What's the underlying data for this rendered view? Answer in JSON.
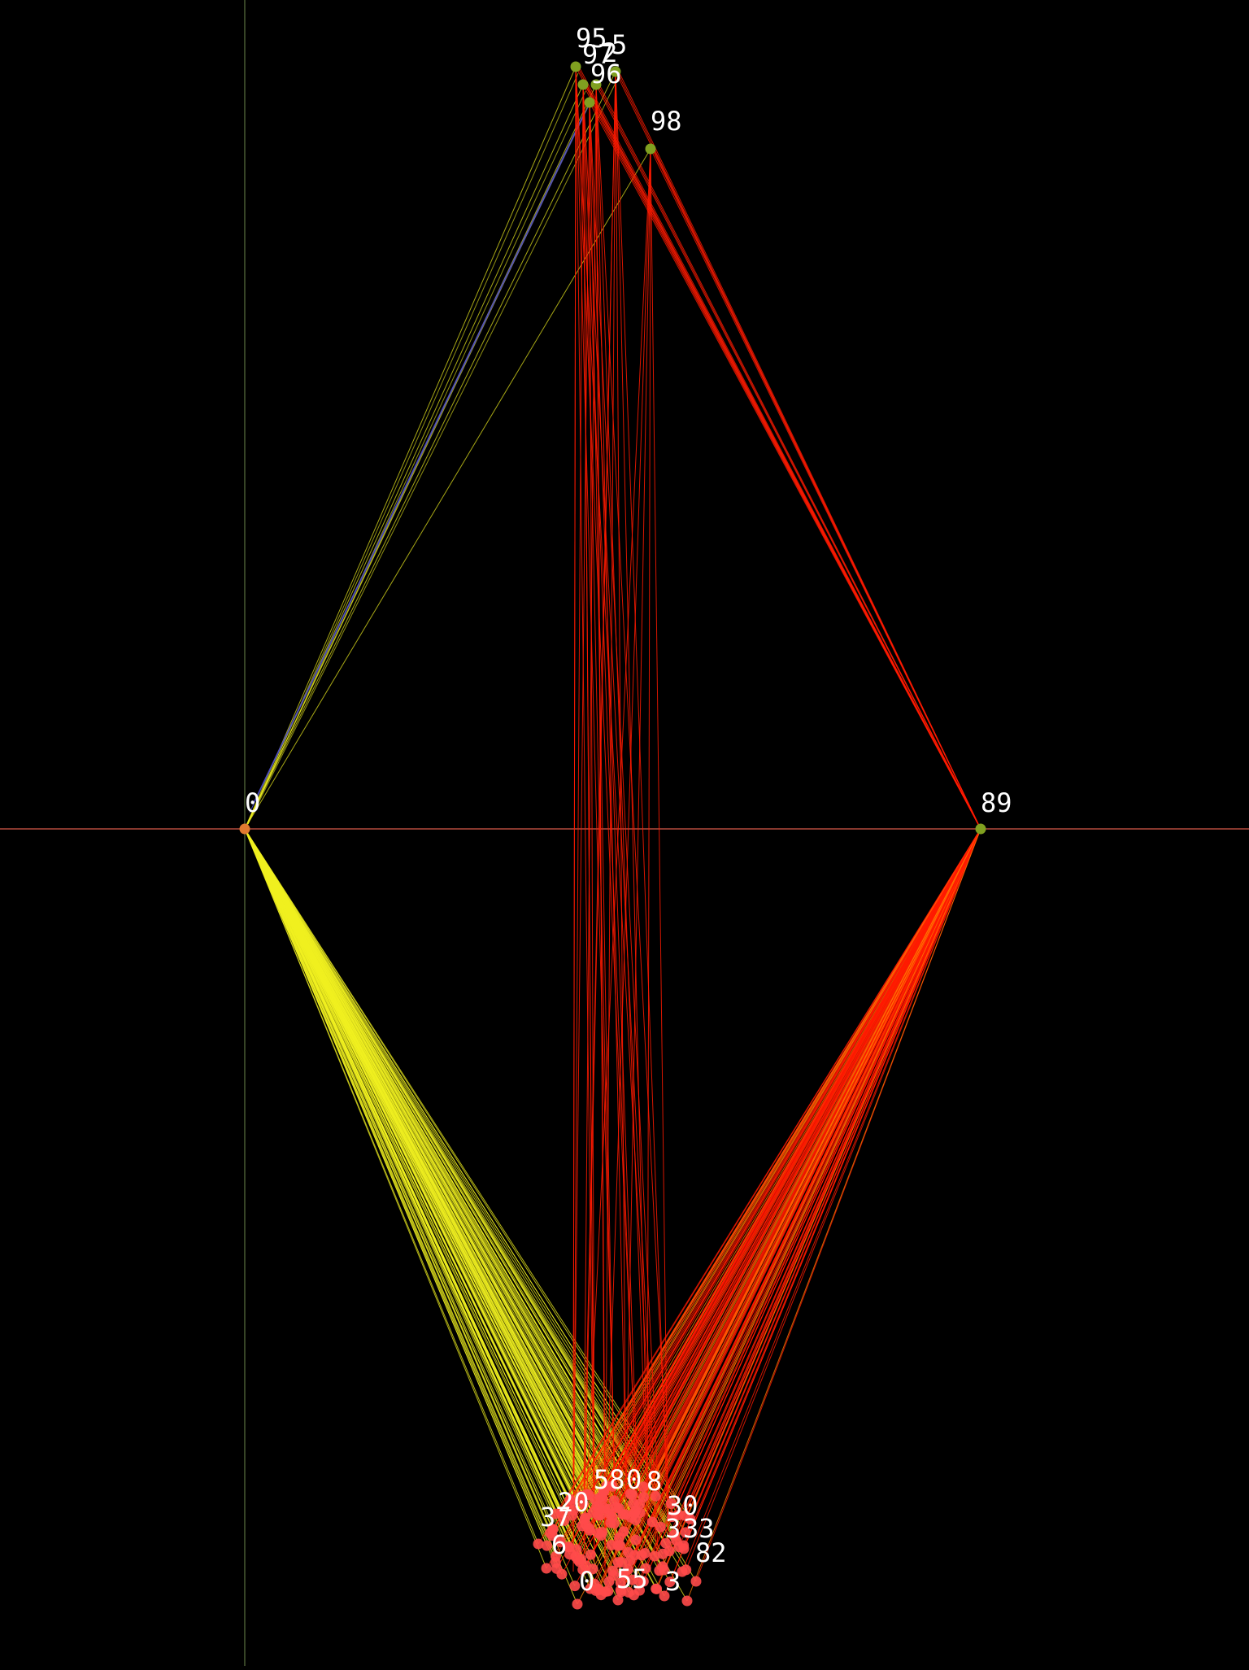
{
  "colors": {
    "background": "#000000",
    "axis_horizontal": "#d85a4a",
    "axis_vertical": "#5a7040",
    "edge_yellow": "#f0f020",
    "edge_red": "#ff1a00",
    "edge_orange": "#ff7a00",
    "edge_blue": "#5050d0",
    "hub_node": "#80a020",
    "origin_node": "#e07a30",
    "cluster_node": "#ff4a4a",
    "label": "#ffffff"
  },
  "nodes": {
    "origin": {
      "label": "0"
    },
    "right_hub": {
      "label": "89"
    },
    "top": [
      {
        "label": "95"
      },
      {
        "label": "5"
      },
      {
        "label": "97"
      },
      {
        "label": "2"
      },
      {
        "label": "96"
      },
      {
        "label": "98"
      }
    ]
  },
  "cluster_labels": [
    "58",
    "0",
    "8",
    "30",
    "20",
    "37",
    "3",
    "6",
    "33",
    "82",
    "0",
    "55",
    "3"
  ]
}
